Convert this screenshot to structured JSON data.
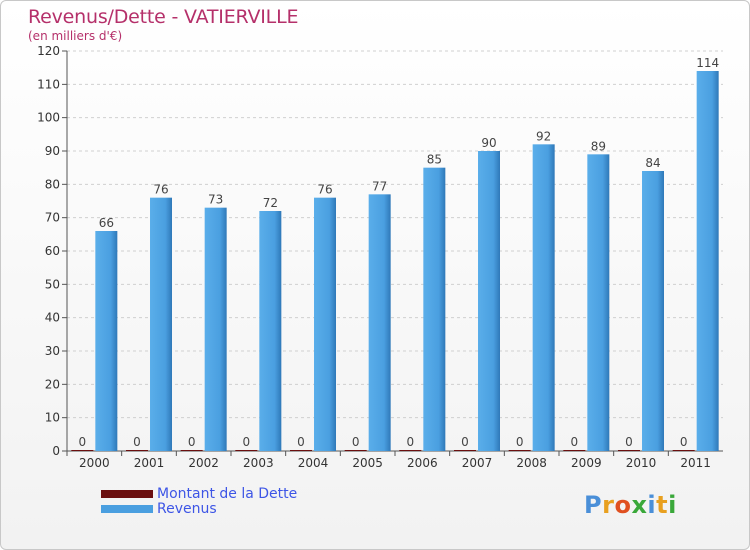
{
  "header": {
    "title": "Revenus/Dette - VATIERVILLE",
    "subtitle": "(en milliers d'€)"
  },
  "colors": {
    "title": "#b5306a",
    "dette": "#6b0f0f",
    "revenus": "#4a9fe0",
    "revenus_dark": "#2f78b8",
    "grid": "#d0d0d0",
    "axis": "#555555",
    "legend_text": "#3d55e6"
  },
  "chart_data": {
    "type": "bar",
    "categories": [
      "2000",
      "2001",
      "2002",
      "2003",
      "2004",
      "2005",
      "2006",
      "2007",
      "2008",
      "2009",
      "2010",
      "2011"
    ],
    "series": [
      {
        "name": "Montant de la Dette",
        "values": [
          0,
          0,
          0,
          0,
          0,
          0,
          0,
          0,
          0,
          0,
          0,
          0
        ]
      },
      {
        "name": "Revenus",
        "values": [
          66,
          76,
          73,
          72,
          76,
          77,
          85,
          90,
          92,
          89,
          84,
          114
        ]
      }
    ],
    "ylim": [
      0,
      120
    ],
    "yticks": [
      0,
      10,
      20,
      30,
      40,
      50,
      60,
      70,
      80,
      90,
      100,
      110,
      120
    ],
    "grid": true,
    "legend_position": "bottom-left"
  },
  "logo": {
    "text": "Proxiti",
    "letter_colors": [
      "#4a8fd8",
      "#e8a020",
      "#e05020",
      "#3aa83a",
      "#4a8fd8",
      "#e8a020",
      "#3aa83a"
    ]
  }
}
